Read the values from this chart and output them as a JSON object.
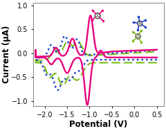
{
  "title": "",
  "xlabel": "Potential (V)",
  "ylabel": "Current (μA)",
  "xlim": [
    -2.25,
    0.65
  ],
  "ylim": [
    -1.0,
    1.0
  ],
  "xticks": [
    -2.0,
    -1.5,
    -1.0,
    -0.5,
    0.0,
    0.5
  ],
  "bg_color": "#ffffff",
  "line_colors": {
    "magenta": "#e8007e",
    "blue": "#1a3fcc",
    "green": "#77bb11"
  },
  "xlabel_fontsize": 8.5,
  "ylabel_fontsize": 8.5,
  "tick_fontsize": 7.0
}
